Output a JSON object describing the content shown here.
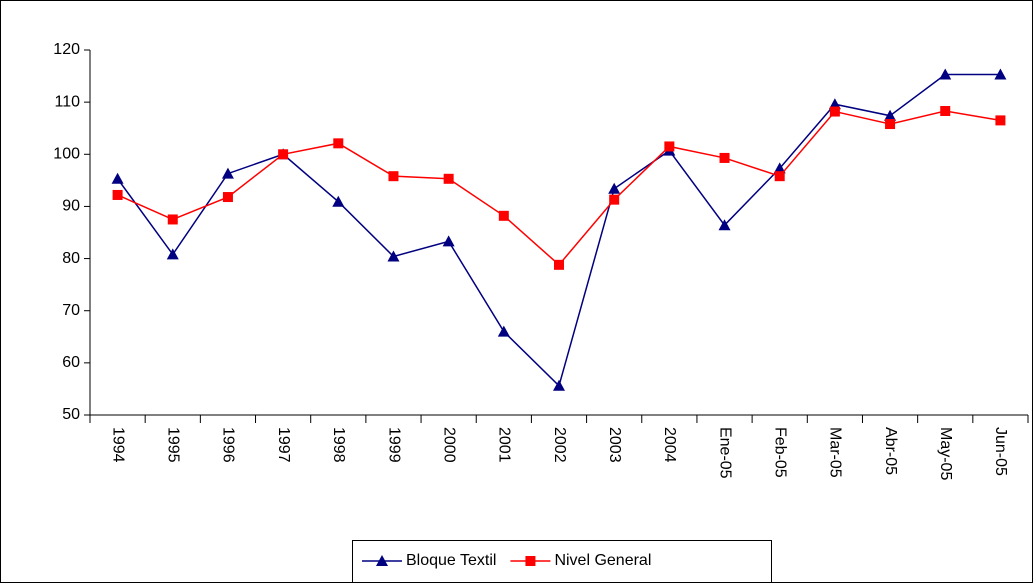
{
  "chart_data": {
    "type": "line",
    "categories": [
      "1994",
      "1995",
      "1996",
      "1997",
      "1998",
      "1999",
      "2000",
      "2001",
      "2002",
      "2003",
      "2004",
      "Ene-05",
      "Feb-05",
      "Mar-05",
      "Abr-05",
      "May-05",
      "Jun-05"
    ],
    "series": [
      {
        "name": "Bloque Textil",
        "color": "#000080",
        "marker": "triangle",
        "values": [
          95.3,
          80.8,
          96.3,
          100,
          90.9,
          80.4,
          83.3,
          66,
          55.6,
          93.4,
          100.7,
          86.4,
          97.3,
          109.6,
          107.4,
          115.3,
          115.3
        ]
      },
      {
        "name": "Nivel General",
        "color": "#ff0000",
        "marker": "square",
        "values": [
          92.2,
          87.5,
          91.8,
          100,
          102.1,
          95.8,
          95.3,
          88.2,
          78.8,
          91.3,
          101.5,
          99.3,
          95.8,
          108.2,
          105.8,
          108.3,
          106.5
        ]
      }
    ],
    "ylim": [
      50,
      120
    ],
    "yticks": [
      50,
      60,
      70,
      80,
      90,
      100,
      110,
      120
    ],
    "legend": "bottom"
  }
}
